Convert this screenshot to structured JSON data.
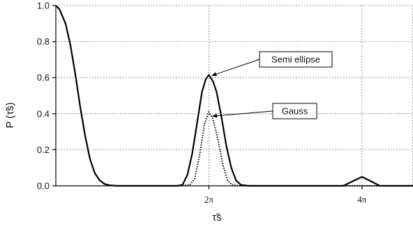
{
  "chart_data": {
    "type": "line",
    "xlabel": "τ̃s",
    "ylabel": "P (τ̃s)",
    "xlim": [
      0,
      14.66
    ],
    "ylim": [
      0,
      1.0
    ],
    "grid": true,
    "y_ticks": [
      {
        "value": 0.0,
        "label": "0.0"
      },
      {
        "value": 0.2,
        "label": "0.2"
      },
      {
        "value": 0.4,
        "label": "0.4"
      },
      {
        "value": 0.6,
        "label": "0.6"
      },
      {
        "value": 0.8,
        "label": "0.8"
      },
      {
        "value": 1.0,
        "label": "1.0"
      }
    ],
    "x_ticks": [
      {
        "value": 6.2832,
        "label": "2π"
      },
      {
        "value": 12.5664,
        "label": "4π"
      }
    ],
    "series": [
      {
        "name": "Semi ellipse",
        "style": "solid",
        "color": "#000000",
        "x": [
          0,
          0.15,
          0.4,
          0.6,
          0.8,
          1.0,
          1.2,
          1.4,
          1.6,
          1.8,
          2.0,
          2.2,
          2.5,
          3.0,
          4.0,
          5.0,
          5.2,
          5.4,
          5.6,
          5.8,
          6.0,
          6.15,
          6.28,
          6.45,
          6.6,
          6.8,
          7.0,
          7.2,
          7.4,
          7.6,
          7.9,
          9.0,
          11.0,
          11.8,
          12.57,
          13.3,
          14.66
        ],
        "y": [
          1.0,
          0.98,
          0.9,
          0.78,
          0.62,
          0.44,
          0.28,
          0.15,
          0.07,
          0.03,
          0.01,
          0.003,
          0.0,
          0.0,
          0.0,
          0.0,
          0.005,
          0.06,
          0.18,
          0.35,
          0.52,
          0.59,
          0.615,
          0.58,
          0.52,
          0.38,
          0.22,
          0.1,
          0.03,
          0.005,
          0.0,
          0.0,
          0.0,
          0.0,
          0.05,
          0.0,
          0.0
        ]
      },
      {
        "name": "Gauss",
        "style": "dotted",
        "color": "#000000",
        "x": [
          0,
          0.15,
          0.4,
          0.6,
          0.8,
          1.0,
          1.2,
          1.4,
          1.6,
          1.8,
          2.0,
          2.2,
          2.5,
          3.0,
          5.0,
          5.5,
          5.7,
          5.9,
          6.1,
          6.28,
          6.45,
          6.65,
          6.85,
          7.05,
          7.25,
          7.6,
          9.0,
          14.66
        ],
        "y": [
          1.0,
          0.98,
          0.9,
          0.78,
          0.62,
          0.44,
          0.28,
          0.15,
          0.07,
          0.03,
          0.01,
          0.003,
          0.0,
          0.0,
          0.0,
          0.005,
          0.04,
          0.17,
          0.34,
          0.41,
          0.37,
          0.26,
          0.12,
          0.03,
          0.005,
          0.0,
          0.0,
          0.0
        ]
      }
    ],
    "annotations": [
      {
        "text": "Semi ellipse",
        "target_x": 6.28,
        "target_y": 0.615
      },
      {
        "text": "Gauss",
        "target_x": 6.3,
        "target_y": 0.39
      }
    ]
  }
}
